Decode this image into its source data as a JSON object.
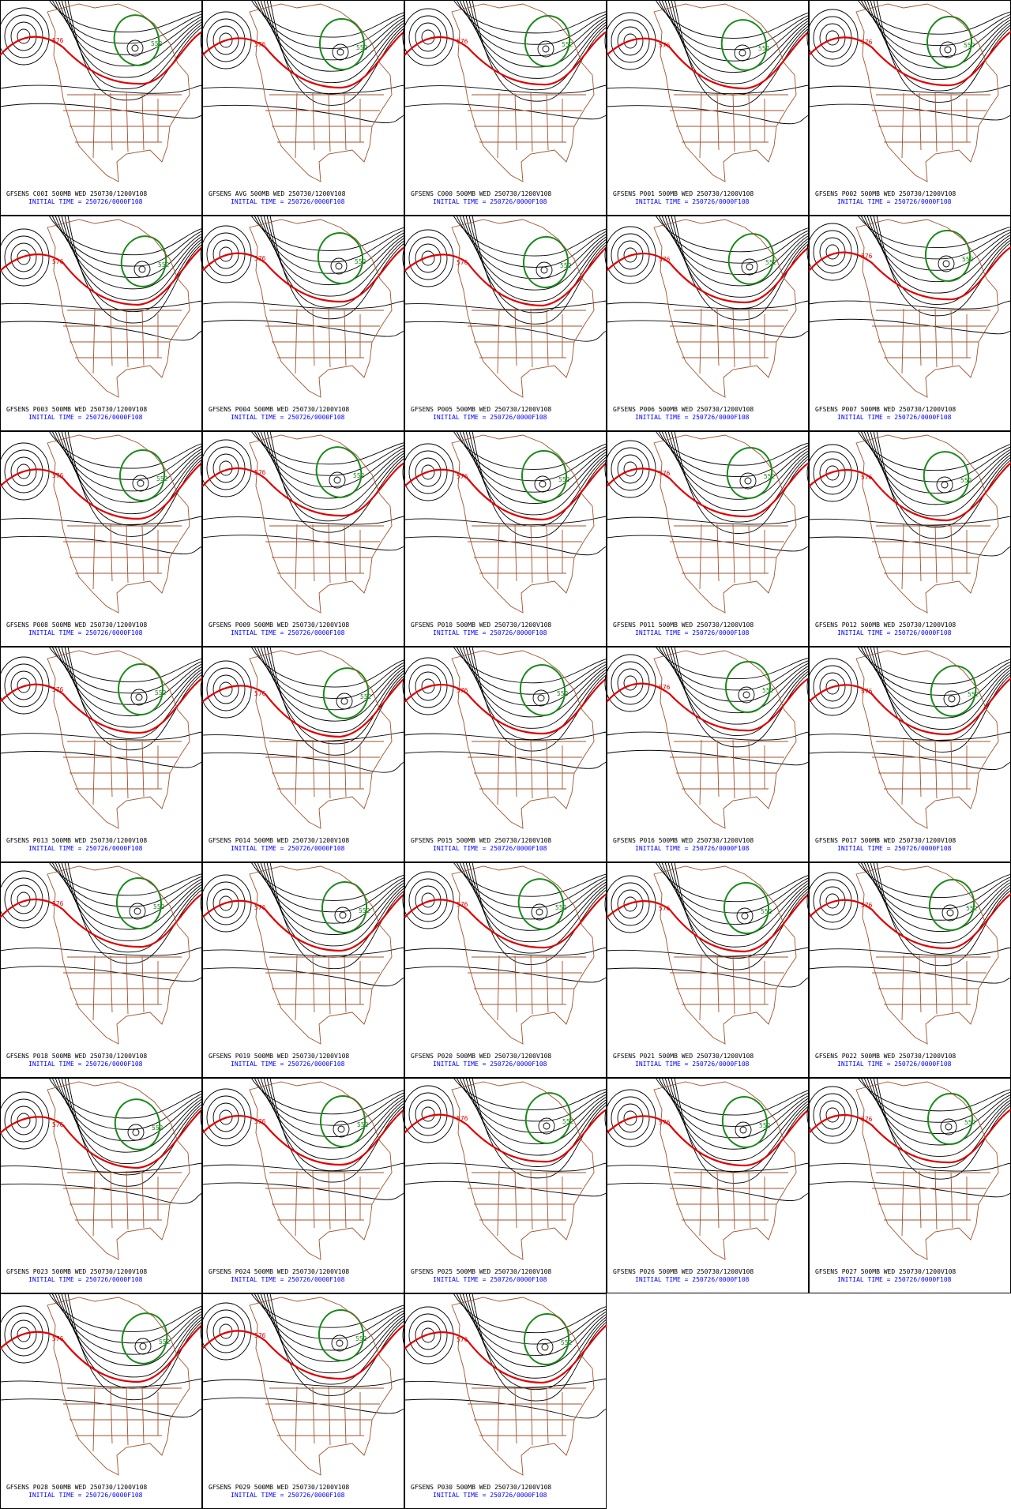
{
  "panels": [
    {
      "line1": "GFSENS C00I 500MB WED 250730/1200V108",
      "line2": "INITIAL TIME = 250726/0000F108",
      "labels": [
        "576",
        "552"
      ]
    },
    {
      "line1": "GFSENS AVG 500MB WED 250730/1200V108",
      "line2": "INITIAL TIME = 250726/0000F108",
      "labels": [
        "576",
        "552"
      ]
    },
    {
      "line1": "GFSENS C000 500MB WED 250730/1200V108",
      "line2": "INITIAL TIME = 250726/0000F108",
      "labels": [
        "576",
        "552"
      ]
    },
    {
      "line1": "GFSENS P001 500MB WED 250730/1200V108",
      "line2": "INITIAL TIME = 250726/0000F108",
      "labels": [
        "576",
        "552"
      ]
    },
    {
      "line1": "GFSENS P002 500MB WED 250730/1200V108",
      "line2": "INITIAL TIME = 250726/0000F108",
      "labels": [
        "576",
        "552"
      ]
    },
    {
      "line1": "GFSENS P003 500MB WED 250730/1200V108",
      "line2": "INITIAL TIME = 250726/0000F108",
      "labels": [
        "576",
        "552"
      ]
    },
    {
      "line1": "GFSENS P004 500MB WED 250730/1200V108",
      "line2": "INITIAL TIME = 250726/0000F108",
      "labels": [
        "576",
        "552"
      ]
    },
    {
      "line1": "GFSENS P005 500MB WED 250730/1200V108",
      "line2": "INITIAL TIME = 250726/0000F108",
      "labels": [
        "576",
        "552"
      ]
    },
    {
      "line1": "GFSENS P006 500MB WED 250730/1200V108",
      "line2": "INITIAL TIME = 250726/0000F108",
      "labels": [
        "576",
        "552"
      ]
    },
    {
      "line1": "GFSENS P007 500MB WED 250730/1200V108",
      "line2": "INITIAL TIME = 250726/0000F108",
      "labels": [
        "576",
        "552"
      ]
    },
    {
      "line1": "GFSENS P008 500MB WED 250730/1200V108",
      "line2": "INITIAL TIME = 250726/0000F108",
      "labels": [
        "576",
        "552"
      ]
    },
    {
      "line1": "GFSENS P009 500MB WED 250730/1200V108",
      "line2": "INITIAL TIME = 250726/0000F108",
      "labels": [
        "576",
        "552"
      ]
    },
    {
      "line1": "GFSENS P010 500MB WED 250730/1200V108",
      "line2": "INITIAL TIME = 250726/0000F108",
      "labels": [
        "576",
        "552"
      ]
    },
    {
      "line1": "GFSENS P011 500MB WED 250730/1200V108",
      "line2": "INITIAL TIME = 250726/0000F108",
      "labels": [
        "576",
        "552"
      ]
    },
    {
      "line1": "GFSENS P012 500MB WED 250730/1200V108",
      "line2": "INITIAL TIME = 250726/0000F108",
      "labels": [
        "576",
        "552"
      ]
    },
    {
      "line1": "GFSENS P013 500MB WED 250730/1200V108",
      "line2": "INITIAL TIME = 250726/0000F108",
      "labels": [
        "576",
        "552"
      ]
    },
    {
      "line1": "GFSENS P014 500MB WED 250730/1200V108",
      "line2": "INITIAL TIME = 250726/0000F108",
      "labels": [
        "576",
        "552"
      ]
    },
    {
      "line1": "GFSENS P015 500MB WED 250730/1200V108",
      "line2": "INITIAL TIME = 250726/0000F108",
      "labels": [
        "576",
        "552"
      ]
    },
    {
      "line1": "GFSENS P016 500MB WED 250730/1200V108",
      "line2": "INITIAL TIME = 250726/0000F108",
      "labels": [
        "576",
        "552"
      ]
    },
    {
      "line1": "GFSENS P017 500MB WED 250730/1200V108",
      "line2": "INITIAL TIME = 250726/0000F108",
      "labels": [
        "576",
        "552"
      ]
    },
    {
      "line1": "GFSENS P018 500MB WED 250730/1200V108",
      "line2": "INITIAL TIME = 250726/0000F108",
      "labels": [
        "576",
        "552"
      ]
    },
    {
      "line1": "GFSENS P019 500MB WED 250730/1200V108",
      "line2": "INITIAL TIME = 250726/0000F108",
      "labels": [
        "576",
        "552"
      ]
    },
    {
      "line1": "GFSENS P020 500MB WED 250730/1200V108",
      "line2": "INITIAL TIME = 250726/0000F108",
      "labels": [
        "576",
        "552"
      ]
    },
    {
      "line1": "GFSENS P021 500MB WED 250730/1200V108",
      "line2": "INITIAL TIME = 250726/0000F108",
      "labels": [
        "576",
        "552"
      ]
    },
    {
      "line1": "GFSENS P022 500MB WED 250730/1200V108",
      "line2": "INITIAL TIME = 250726/0000F108",
      "labels": [
        "576",
        "552"
      ]
    },
    {
      "line1": "GFSENS P023 500MB WED 250730/1200V108",
      "line2": "INITIAL TIME = 250726/0000F108",
      "labels": [
        "576",
        "552"
      ]
    },
    {
      "line1": "GFSENS P024 500MB WED 250730/1200V108",
      "line2": "INITIAL TIME = 250726/0000F108",
      "labels": [
        "576",
        "552"
      ]
    },
    {
      "line1": "GFSENS P025 500MB WED 250730/1200V108",
      "line2": "INITIAL TIME = 250726/0000F108",
      "labels": [
        "576",
        "552"
      ]
    },
    {
      "line1": "GFSENS P026 500MB WED 250730/1200V108",
      "line2": "INITIAL TIME = 250726/0000F108",
      "labels": [
        "576",
        "552"
      ]
    },
    {
      "line1": "GFSENS P027 500MB WED 250730/1200V108",
      "line2": "INITIAL TIME = 250726/0000F108",
      "labels": [
        "576",
        "552"
      ]
    },
    {
      "line1": "GFSENS P028 500MB WED 250730/1200V108",
      "line2": "INITIAL TIME = 250726/0000F108",
      "labels": [
        "576",
        "552"
      ]
    },
    {
      "line1": "GFSENS P029 500MB WED 250730/1200V108",
      "line2": "INITIAL TIME = 250726/0000F108",
      "labels": [
        "576",
        "552"
      ]
    },
    {
      "line1": "GFSENS P030 500MB WED 250730/1200V108",
      "line2": "INITIAL TIME = 250726/0000F108",
      "labels": [
        "576",
        "552"
      ]
    }
  ]
}
